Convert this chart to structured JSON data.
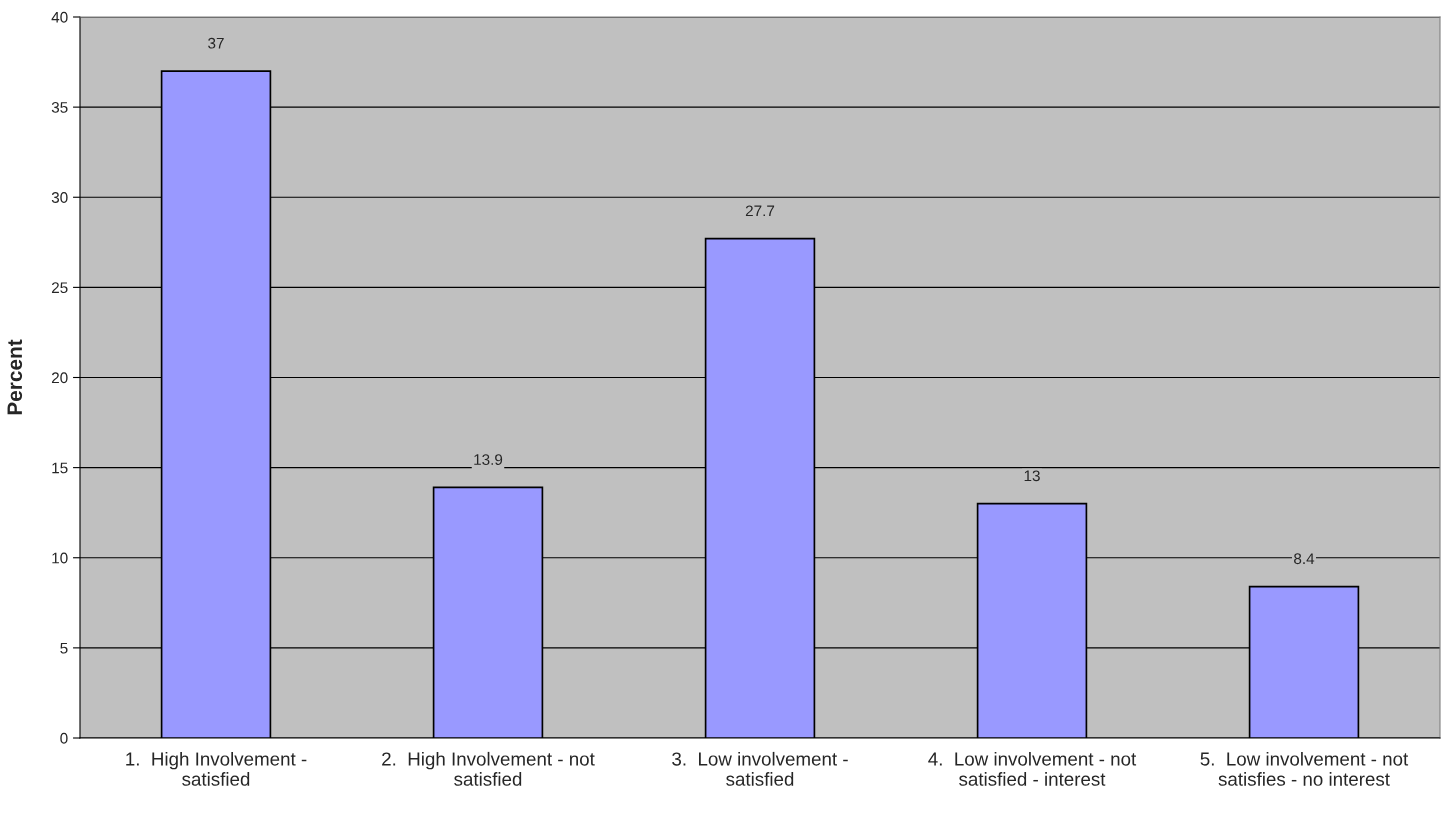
{
  "chart_data": {
    "type": "bar",
    "ylabel": "Percent",
    "categories": [
      "1.  High Involvement -\nsatisfied",
      "2.  High Involvement - not\nsatisfied",
      "3.  Low involvement -\nsatisfied",
      "4.  Low involvement - not\nsatisfied - interest",
      "5.  Low involvement - not\nsatisfies - no interest"
    ],
    "values": [
      37,
      13.9,
      27.7,
      13,
      8.4
    ],
    "color": "#9999ff",
    "ylim": [
      0,
      40
    ],
    "yticks": [
      0,
      5,
      10,
      15,
      20,
      25,
      30,
      35,
      40
    ],
    "grid": "y",
    "data_labels": true
  }
}
